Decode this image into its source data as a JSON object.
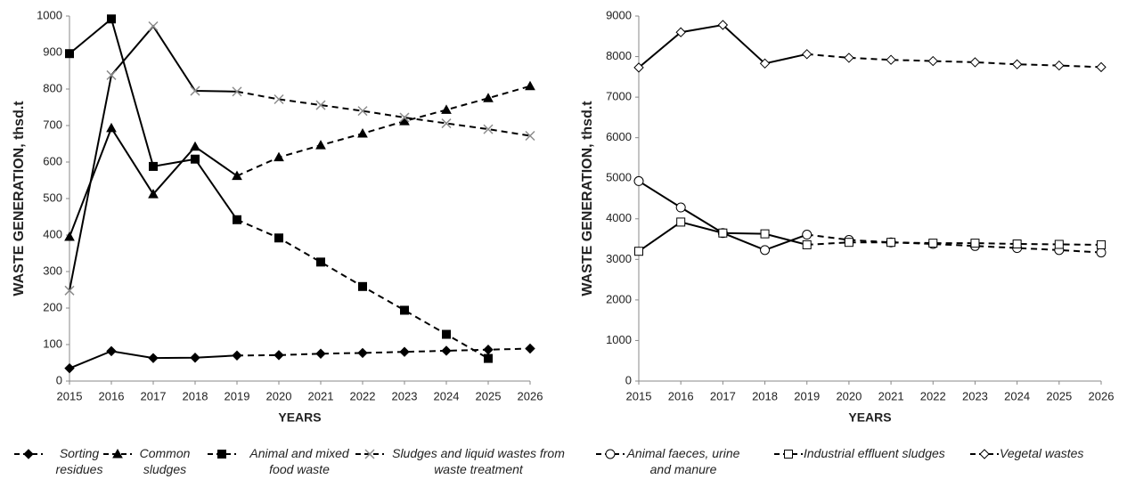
{
  "chart_data": [
    {
      "type": "line",
      "y_label": "WASTE GENERATION, thsd.t",
      "x_label": "YEARS",
      "x": [
        2015,
        2016,
        2017,
        2018,
        2019,
        2020,
        2021,
        2022,
        2023,
        2024,
        2025,
        2026
      ],
      "xlim": [
        2015,
        2026
      ],
      "xticks": [
        2015,
        2016,
        2017,
        2018,
        2019,
        2020,
        2021,
        2022,
        2023,
        2024,
        2025,
        2026
      ],
      "ylim": [
        0,
        1000
      ],
      "yticks": [
        0,
        100,
        200,
        300,
        400,
        500,
        600,
        700,
        800,
        900,
        1000
      ],
      "dash_from": 2019,
      "series": [
        {
          "name": "Sorting residues",
          "color": "#000000",
          "marker": "diamond",
          "marker_fill": "#000000",
          "values": [
            35,
            82,
            63,
            64,
            70,
            71,
            75,
            77,
            80,
            83,
            86,
            89
          ]
        },
        {
          "name": "Common sludges",
          "color": "#000000",
          "marker": "triangle",
          "marker_fill": "#000000",
          "values": [
            395,
            693,
            512,
            642,
            562,
            613,
            646,
            678,
            712,
            743,
            775,
            808
          ]
        },
        {
          "name": "Animal and mixed food waste",
          "color": "#000000",
          "marker": "square",
          "marker_fill": "#000000",
          "values": [
            897,
            992,
            588,
            608,
            442,
            392,
            326,
            259,
            194,
            128,
            62,
            null
          ]
        },
        {
          "name": "Sludges and liquid wastes from waste treatment",
          "color": "#000000",
          "marker": "cross",
          "marker_fill": "#8c8c8c",
          "values": [
            248,
            838,
            972,
            795,
            793,
            772,
            756,
            740,
            722,
            706,
            690,
            672
          ]
        }
      ]
    },
    {
      "type": "line",
      "y_label": "WASTE GENERATION, thsd.t",
      "x_label": "YEARS",
      "x": [
        2015,
        2016,
        2017,
        2018,
        2019,
        2020,
        2021,
        2022,
        2023,
        2024,
        2025,
        2026
      ],
      "xlim": [
        2015,
        2026
      ],
      "xticks": [
        2015,
        2016,
        2017,
        2018,
        2019,
        2020,
        2021,
        2022,
        2023,
        2024,
        2025,
        2026
      ],
      "ylim": [
        0,
        9000
      ],
      "yticks": [
        0,
        1000,
        2000,
        3000,
        4000,
        5000,
        6000,
        7000,
        8000,
        9000
      ],
      "dash_from": 2019,
      "series": [
        {
          "name": "Animal faeces, urine and manure",
          "color": "#000000",
          "marker": "circle",
          "marker_fill": "#ffffff",
          "values": [
            4930,
            4280,
            3650,
            3230,
            3610,
            3480,
            3420,
            3380,
            3330,
            3280,
            3230,
            3170
          ]
        },
        {
          "name": "Industrial effluent sludges",
          "color": "#000000",
          "marker": "square",
          "marker_fill": "#ffffff",
          "values": [
            3200,
            3920,
            3650,
            3630,
            3360,
            3420,
            3420,
            3400,
            3400,
            3380,
            3370,
            3360
          ]
        },
        {
          "name": "Vegetal wastes",
          "color": "#000000",
          "marker": "diamond",
          "marker_fill": "#ffffff",
          "values": [
            7730,
            8600,
            8780,
            7830,
            8060,
            7970,
            7920,
            7890,
            7860,
            7810,
            7780,
            7740
          ]
        }
      ]
    }
  ]
}
